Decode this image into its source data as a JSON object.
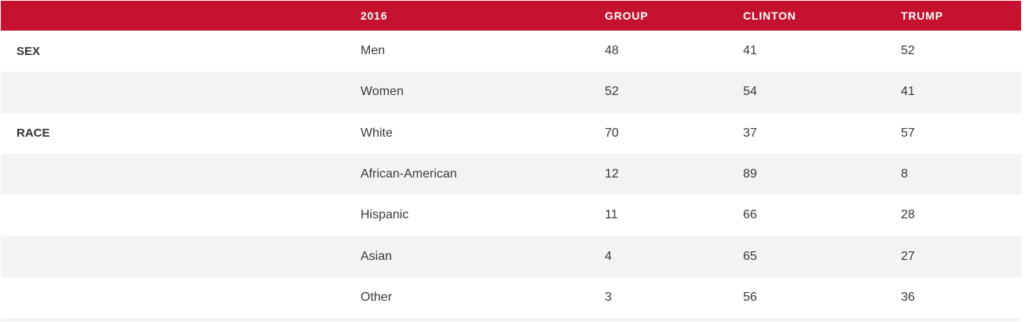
{
  "table": {
    "headers": [
      "",
      "2016",
      "GROUP",
      "CLINTON",
      "TRUMP"
    ],
    "rows": [
      {
        "category": "SEX",
        "label": "Men",
        "group": "48",
        "clinton": "41",
        "trump": "52"
      },
      {
        "category": "",
        "label": "Women",
        "group": "52",
        "clinton": "54",
        "trump": "41"
      },
      {
        "category": "RACE",
        "label": "White",
        "group": "70",
        "clinton": "37",
        "trump": "57"
      },
      {
        "category": "",
        "label": "African-American",
        "group": "12",
        "clinton": "89",
        "trump": "8"
      },
      {
        "category": "",
        "label": "Hispanic",
        "group": "11",
        "clinton": "66",
        "trump": "28"
      },
      {
        "category": "",
        "label": "Asian",
        "group": "4",
        "clinton": "65",
        "trump": "27"
      },
      {
        "category": "",
        "label": "Other",
        "group": "3",
        "clinton": "56",
        "trump": "36"
      }
    ]
  },
  "colors": {
    "header_bg": "#c41230",
    "header_text": "#ffffff",
    "row_shade": "#f3f3f3",
    "row_white": "#ffffff",
    "text": "#3a3a3a"
  }
}
